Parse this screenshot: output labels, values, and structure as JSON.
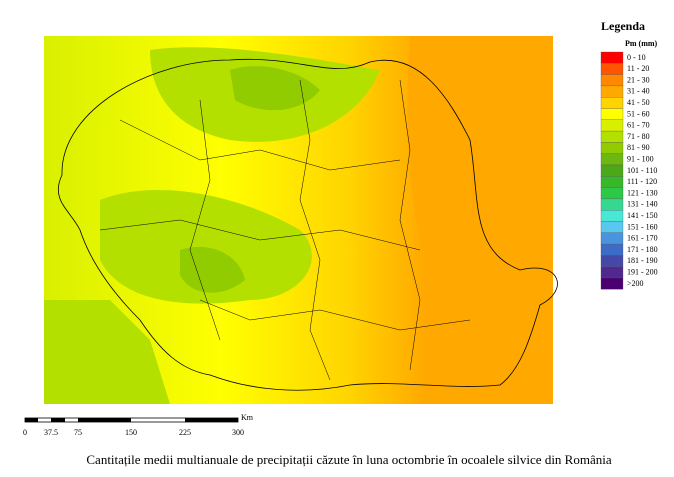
{
  "legend": {
    "title": "Legenda",
    "unit": "Pm (mm)",
    "items": [
      {
        "label": "0 - 10",
        "color": "#ff0000"
      },
      {
        "label": "11 - 20",
        "color": "#ff5500"
      },
      {
        "label": "21 - 30",
        "color": "#ff8800"
      },
      {
        "label": "31 - 40",
        "color": "#ffa800"
      },
      {
        "label": "41 - 50",
        "color": "#ffd400"
      },
      {
        "label": "51 - 60",
        "color": "#ffff00"
      },
      {
        "label": "61 - 70",
        "color": "#d8f000"
      },
      {
        "label": "71 - 80",
        "color": "#b4e000"
      },
      {
        "label": "81 - 90",
        "color": "#90cc00"
      },
      {
        "label": "91 - 100",
        "color": "#6cb810"
      },
      {
        "label": "101 - 110",
        "color": "#4ca818"
      },
      {
        "label": "111 - 120",
        "color": "#38b828"
      },
      {
        "label": "121 - 130",
        "color": "#2cc848"
      },
      {
        "label": "131 - 140",
        "color": "#34d890"
      },
      {
        "label": "141 - 150",
        "color": "#48e8d4"
      },
      {
        "label": "151 - 160",
        "color": "#58c8f0"
      },
      {
        "label": "161 - 170",
        "color": "#4894e0"
      },
      {
        "label": "171 - 180",
        "color": "#3c6cc8"
      },
      {
        "label": "181 - 190",
        "color": "#4448a8"
      },
      {
        "label": "191 - 200",
        "color": "#502890"
      },
      {
        "label": ">200",
        "color": "#4a0070"
      }
    ]
  },
  "scale": {
    "unit": "Km",
    "ticks": [
      "0",
      "37.5",
      "75",
      "150",
      "225",
      "300"
    ]
  },
  "caption": "Cantitațile medii multianuale de precipitații căzute în luna octombrie în ocoalele silvice din România"
}
